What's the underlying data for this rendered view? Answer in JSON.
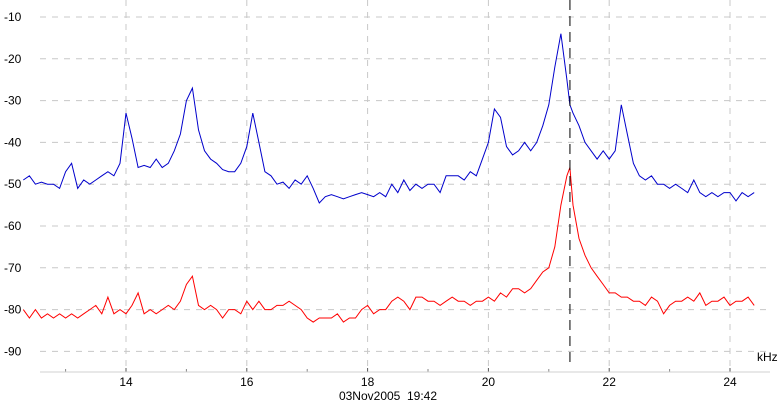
{
  "chart_data": {
    "type": "line",
    "xlabel": "kHz",
    "ylabel": "",
    "xlim": [
      12.3,
      24.5
    ],
    "ylim": [
      -93,
      -7
    ],
    "x_ticks": [
      14,
      16,
      18,
      20,
      22,
      24
    ],
    "y_ticks": [
      -10,
      -20,
      -30,
      -40,
      -50,
      -60,
      -70,
      -80,
      -90
    ],
    "grid": true,
    "timestamp": "03Nov2005  19:42",
    "marker_x": 21.35,
    "series": [
      {
        "color": "#0000cc",
        "x": [
          12.3,
          12.4,
          12.5,
          12.6,
          12.7,
          12.8,
          12.9,
          13.0,
          13.1,
          13.2,
          13.3,
          13.4,
          13.5,
          13.6,
          13.7,
          13.8,
          13.9,
          14.0,
          14.1,
          14.2,
          14.3,
          14.4,
          14.5,
          14.6,
          14.7,
          14.8,
          14.9,
          15.0,
          15.1,
          15.2,
          15.3,
          15.4,
          15.5,
          15.6,
          15.7,
          15.8,
          15.9,
          16.0,
          16.1,
          16.2,
          16.3,
          16.4,
          16.5,
          16.6,
          16.7,
          16.8,
          16.9,
          17.0,
          17.1,
          17.2,
          17.3,
          17.4,
          17.5,
          17.6,
          17.7,
          17.8,
          17.9,
          18.0,
          18.1,
          18.2,
          18.3,
          18.4,
          18.5,
          18.6,
          18.7,
          18.8,
          18.9,
          19.0,
          19.1,
          19.2,
          19.3,
          19.4,
          19.5,
          19.6,
          19.7,
          19.8,
          19.9,
          20.0,
          20.1,
          20.2,
          20.3,
          20.4,
          20.5,
          20.6,
          20.7,
          20.8,
          20.9,
          21.0,
          21.1,
          21.2,
          21.3,
          21.35,
          21.4,
          21.5,
          21.6,
          21.7,
          21.8,
          21.9,
          22.0,
          22.1,
          22.2,
          22.3,
          22.4,
          22.5,
          22.6,
          22.7,
          22.8,
          22.9,
          23.0,
          23.1,
          23.2,
          23.3,
          23.4,
          23.5,
          23.6,
          23.7,
          23.8,
          23.9,
          24.0,
          24.1,
          24.2,
          24.3,
          24.4
        ],
        "y": [
          -49,
          -48,
          -50,
          -49.5,
          -50,
          -50,
          -51,
          -47,
          -45,
          -51,
          -49,
          -50,
          -49,
          -48,
          -47,
          -48,
          -45,
          -33,
          -39,
          -46,
          -45.5,
          -46,
          -44,
          -46,
          -45,
          -42,
          -38,
          -30,
          -27,
          -37,
          -42,
          -44,
          -45,
          -46.5,
          -47,
          -47,
          -45,
          -41,
          -33,
          -40,
          -47,
          -48,
          -50,
          -49.5,
          -51,
          -49,
          -50,
          -48,
          -51,
          -54.5,
          -53,
          -52.5,
          -53,
          -53.5,
          -53,
          -52.5,
          -52,
          -52.5,
          -53,
          -52,
          -53,
          -50,
          -52,
          -49,
          -51.5,
          -50,
          -51,
          -50,
          -50,
          -52,
          -48,
          -48,
          -48,
          -49,
          -47,
          -48,
          -44,
          -40,
          -32,
          -34,
          -41,
          -43,
          -42,
          -40,
          -42,
          -40,
          -36,
          -31,
          -22,
          -14,
          -25,
          -31,
          -33,
          -36,
          -40,
          -42,
          -44,
          -42,
          -44,
          -42,
          -31,
          -38,
          -45,
          -48,
          -49,
          -48,
          -50,
          -50,
          -51,
          -50,
          -51,
          -52,
          -49,
          -52,
          -53,
          -52,
          -53,
          -52,
          -52,
          -54,
          -52,
          -53,
          -52
        ]
      },
      {
        "color": "#ff0000",
        "x": [
          12.3,
          12.4,
          12.5,
          12.6,
          12.7,
          12.8,
          12.9,
          13.0,
          13.1,
          13.2,
          13.3,
          13.4,
          13.5,
          13.6,
          13.7,
          13.8,
          13.9,
          14.0,
          14.1,
          14.2,
          14.3,
          14.4,
          14.5,
          14.6,
          14.7,
          14.8,
          14.9,
          15.0,
          15.1,
          15.2,
          15.3,
          15.4,
          15.5,
          15.6,
          15.7,
          15.8,
          15.9,
          16.0,
          16.1,
          16.2,
          16.3,
          16.4,
          16.5,
          16.6,
          16.7,
          16.8,
          16.9,
          17.0,
          17.1,
          17.2,
          17.3,
          17.4,
          17.5,
          17.6,
          17.7,
          17.8,
          17.9,
          18.0,
          18.1,
          18.2,
          18.3,
          18.4,
          18.5,
          18.6,
          18.7,
          18.8,
          18.9,
          19.0,
          19.1,
          19.2,
          19.3,
          19.4,
          19.5,
          19.6,
          19.7,
          19.8,
          19.9,
          20.0,
          20.1,
          20.2,
          20.3,
          20.4,
          20.5,
          20.6,
          20.7,
          20.8,
          20.9,
          21.0,
          21.1,
          21.2,
          21.3,
          21.35,
          21.4,
          21.5,
          21.6,
          21.7,
          21.8,
          21.9,
          22.0,
          22.1,
          22.2,
          22.3,
          22.4,
          22.5,
          22.6,
          22.7,
          22.8,
          22.9,
          23.0,
          23.1,
          23.2,
          23.3,
          23.4,
          23.5,
          23.6,
          23.7,
          23.8,
          23.9,
          24.0,
          24.1,
          24.2,
          24.3,
          24.4
        ],
        "y": [
          -80,
          -82,
          -80,
          -82,
          -81,
          -82,
          -81,
          -82,
          -81,
          -82,
          -81,
          -80,
          -79,
          -81,
          -77,
          -81,
          -80,
          -81,
          -79,
          -76,
          -81,
          -80,
          -81,
          -80,
          -79,
          -80,
          -78,
          -74,
          -72,
          -79,
          -80,
          -79,
          -80,
          -82,
          -80,
          -80,
          -81,
          -78,
          -80,
          -78,
          -80,
          -80,
          -79,
          -79,
          -78,
          -79,
          -80,
          -82,
          -83,
          -82,
          -82,
          -82,
          -81,
          -83,
          -82,
          -82,
          -80,
          -79,
          -81,
          -80,
          -80,
          -78,
          -77,
          -78,
          -80,
          -77,
          -77,
          -78,
          -78,
          -79,
          -78,
          -77,
          -78,
          -78,
          -79,
          -78,
          -78,
          -77,
          -78,
          -76,
          -77,
          -75,
          -75,
          -76,
          -75,
          -73,
          -71,
          -70,
          -65,
          -55,
          -48,
          -46,
          -55,
          -63,
          -67,
          -70,
          -72,
          -74,
          -76,
          -76,
          -77,
          -77,
          -78,
          -78,
          -79,
          -77,
          -78,
          -81,
          -79,
          -78,
          -78,
          -77,
          -78,
          -76,
          -79,
          -78,
          -78,
          -77,
          -79,
          -78,
          -78,
          -77,
          -79
        ]
      }
    ]
  }
}
